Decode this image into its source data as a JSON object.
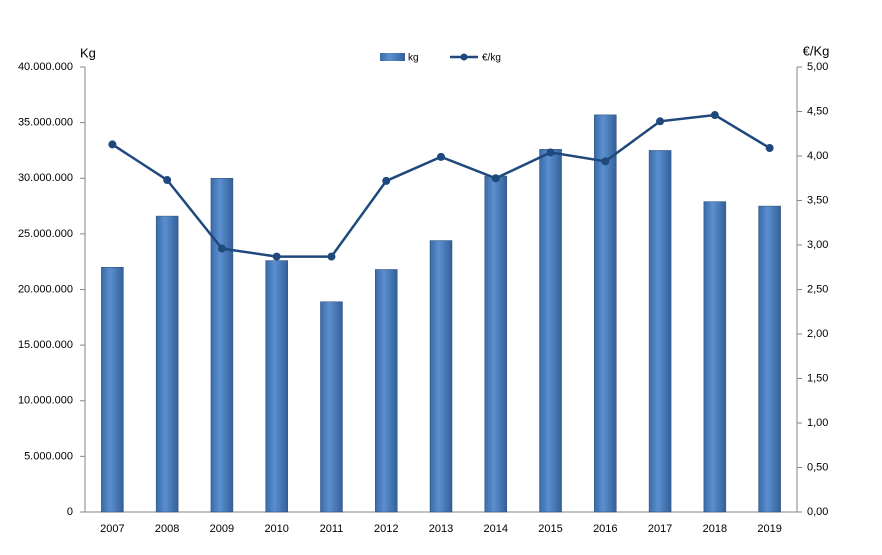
{
  "chart_data": {
    "type": "bar-line",
    "categories": [
      "2007",
      "2008",
      "2009",
      "2010",
      "2011",
      "2012",
      "2013",
      "2014",
      "2015",
      "2016",
      "2017",
      "2018",
      "2019"
    ],
    "series": [
      {
        "name": "kg",
        "type": "bar",
        "color": "#4f81bd",
        "values": [
          22000000,
          26600000,
          30000000,
          22600000,
          18900000,
          21800000,
          24400000,
          30200000,
          32600000,
          35700000,
          32500000,
          27900000,
          27500000
        ]
      },
      {
        "name": "€/kg",
        "type": "line",
        "axis": "y2",
        "color": "#1f497d",
        "values": [
          4.13,
          3.73,
          2.96,
          2.87,
          2.87,
          3.72,
          3.99,
          3.75,
          4.04,
          3.94,
          4.39,
          4.46,
          4.09
        ]
      }
    ],
    "ylabel": "Kg",
    "y2label": "€/Kg",
    "ylim": [
      0,
      40000000
    ],
    "yticks": [
      0,
      {
        "value": 5000000,
        "label": "5.000.000"
      },
      {
        "value": 10000000,
        "label": "10.000.000"
      },
      {
        "value": 15000000,
        "label": "15.000.000"
      },
      {
        "value": 20000000,
        "label": "20.000.000"
      },
      {
        "value": 25000000,
        "label": "25.000.000"
      },
      {
        "value": 30000000,
        "label": "30.000.000"
      },
      {
        "value": 35000000,
        "label": "35.000.000"
      },
      {
        "value": 40000000,
        "label": "40.000.000"
      }
    ],
    "y2lim": [
      0,
      5
    ],
    "y2ticks": [
      {
        "value": 0,
        "label": "0,00"
      },
      {
        "value": 0.5,
        "label": "0,50"
      },
      {
        "value": 1,
        "label": "1,00"
      },
      {
        "value": 1.5,
        "label": "1,50"
      },
      {
        "value": 2,
        "label": "2,00"
      },
      {
        "value": 2.5,
        "label": "2,50"
      },
      {
        "value": 3,
        "label": "3,00"
      },
      {
        "value": 3.5,
        "label": "3,50"
      },
      {
        "value": 4,
        "label": "4,00"
      },
      {
        "value": 4.5,
        "label": "4,50"
      },
      {
        "value": 5,
        "label": "5,00"
      }
    ]
  }
}
